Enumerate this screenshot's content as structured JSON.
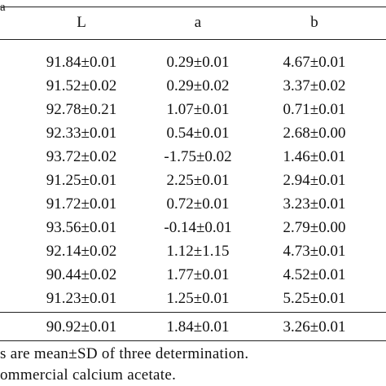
{
  "table": {
    "corner_fragment": "a",
    "headers": [
      "L",
      "a",
      "b"
    ],
    "rows": [
      [
        "91.84±0.01",
        "0.29±0.01",
        "4.67±0.01"
      ],
      [
        "91.52±0.02",
        "0.29±0.02",
        "3.37±0.02"
      ],
      [
        "92.78±0.21",
        "1.07±0.01",
        "0.71±0.01"
      ],
      [
        "92.33±0.01",
        "0.54±0.01",
        "2.68±0.00"
      ],
      [
        "93.72±0.02",
        "-1.75±0.02",
        "1.46±0.01"
      ],
      [
        "91.25±0.01",
        "2.25±0.01",
        "2.94±0.01"
      ],
      [
        "91.72±0.01",
        "0.72±0.01",
        "3.23±0.01"
      ],
      [
        "93.56±0.01",
        "-0.14±0.01",
        "2.79±0.00"
      ],
      [
        "92.14±0.02",
        "1.12±1.15",
        "4.73±0.01"
      ],
      [
        "90.44±0.02",
        "1.77±0.01",
        "4.52±0.01"
      ],
      [
        "91.23±0.01",
        "1.25±0.01",
        "5.25±0.01"
      ]
    ],
    "summary_row": [
      "90.92±0.01",
      "1.84±0.01",
      "3.26±0.01"
    ]
  },
  "footnotes": [
    "s are mean±SD of three determination.",
    "ommercial calcium acetate."
  ]
}
